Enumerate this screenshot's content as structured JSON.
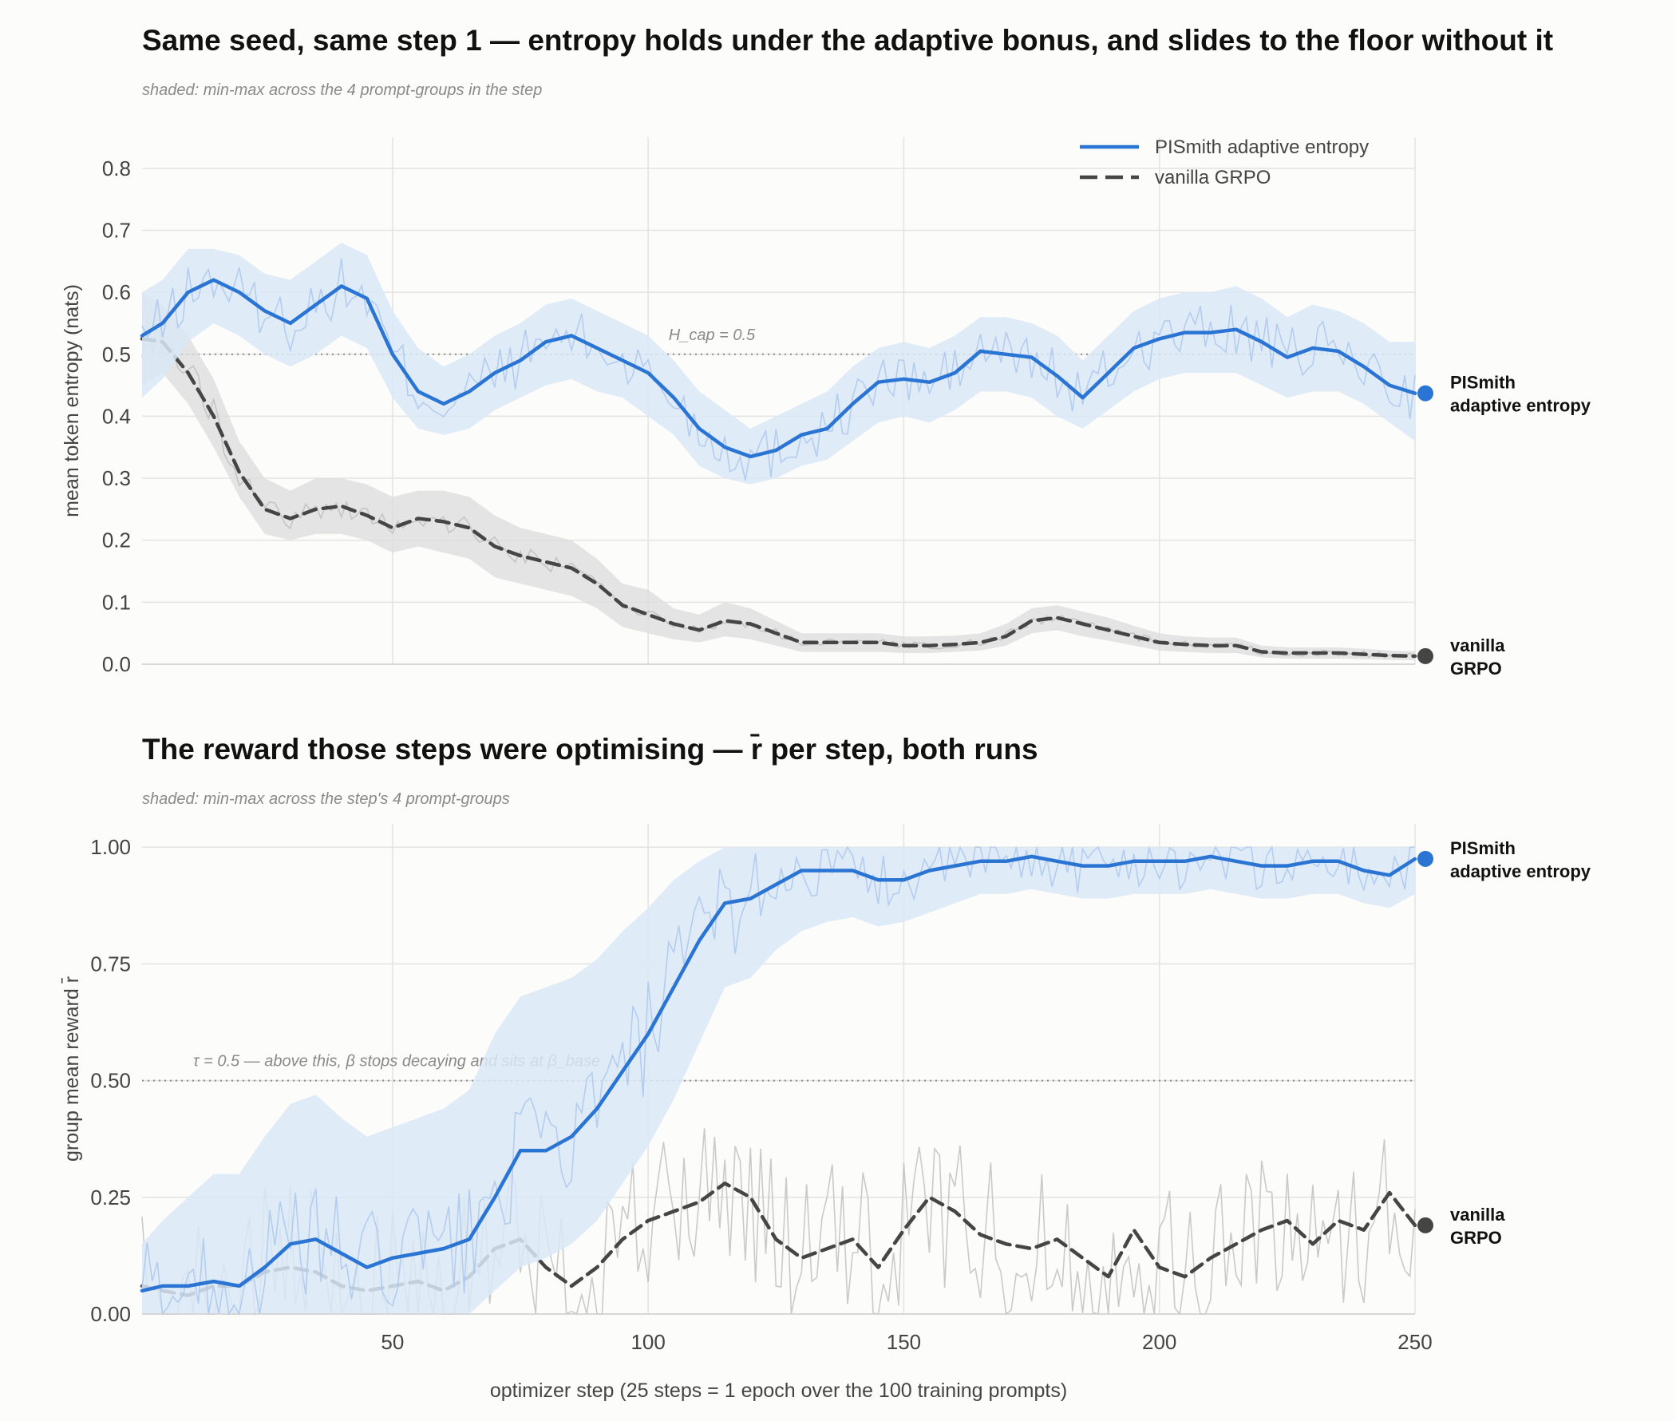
{
  "figure": {
    "top_title": "Same seed, same step 1 — entropy holds under the adaptive bonus, and slides to the floor without it",
    "top_subtitle": "shaded: min-max across the 4 prompt-groups in the step",
    "bottom_title": "The reward those steps were optimising — r̄ per step, both runs",
    "bottom_subtitle": "shaded: min-max across the step's 4 prompt-groups"
  },
  "colors": {
    "pismith": "#2a74d4",
    "vanilla": "#454545",
    "pismith_band": "#dbe7f7",
    "vanilla_band": "#dcdcdc",
    "grid": "#e3e3e3"
  },
  "chart_data": [
    {
      "type": "line",
      "ylabel": "mean token entropy  (nats)",
      "xlim": [
        1,
        250
      ],
      "ylim": [
        0,
        0.85
      ],
      "yticks": [
        "0.0",
        "0.1",
        "0.2",
        "0.3",
        "0.4",
        "0.5",
        "0.6",
        "0.7",
        "0.8"
      ],
      "ytick_values": [
        0,
        0.1,
        0.2,
        0.3,
        0.4,
        0.5,
        0.6,
        0.7,
        0.8
      ],
      "xtick_values": [
        50,
        100,
        150,
        200,
        250
      ],
      "reference_line": {
        "y": 0.5,
        "label": "H_cap = 0.5"
      },
      "legend": {
        "position": "top-right",
        "entries": [
          "PISmith adaptive entropy",
          "vanilla GRPO"
        ]
      },
      "end_labels": {
        "pismith": [
          "PISmith",
          "adaptive entropy"
        ],
        "vanilla": [
          "vanilla",
          "GRPO"
        ]
      },
      "end_values": {
        "pismith": 0.437,
        "vanilla": 0.013
      },
      "series": [
        {
          "key": "pismith",
          "x": [
            1,
            5,
            10,
            15,
            20,
            25,
            30,
            35,
            40,
            45,
            50,
            55,
            60,
            65,
            70,
            75,
            80,
            85,
            90,
            95,
            100,
            105,
            110,
            115,
            120,
            125,
            130,
            135,
            140,
            145,
            150,
            155,
            160,
            165,
            170,
            175,
            180,
            185,
            190,
            195,
            200,
            205,
            210,
            215,
            220,
            225,
            230,
            235,
            240,
            245,
            250
          ],
          "y": [
            0.53,
            0.55,
            0.6,
            0.62,
            0.6,
            0.57,
            0.55,
            0.58,
            0.61,
            0.59,
            0.5,
            0.44,
            0.42,
            0.44,
            0.47,
            0.49,
            0.52,
            0.53,
            0.51,
            0.49,
            0.47,
            0.43,
            0.38,
            0.35,
            0.335,
            0.345,
            0.37,
            0.38,
            0.42,
            0.455,
            0.46,
            0.455,
            0.47,
            0.505,
            0.5,
            0.495,
            0.465,
            0.43,
            0.47,
            0.51,
            0.525,
            0.535,
            0.535,
            0.54,
            0.52,
            0.495,
            0.51,
            0.505,
            0.48,
            0.45,
            0.437
          ],
          "band_lo": [
            0.43,
            0.46,
            0.52,
            0.55,
            0.53,
            0.5,
            0.48,
            0.5,
            0.53,
            0.51,
            0.43,
            0.38,
            0.37,
            0.38,
            0.41,
            0.43,
            0.45,
            0.46,
            0.44,
            0.43,
            0.4,
            0.37,
            0.32,
            0.3,
            0.29,
            0.3,
            0.32,
            0.33,
            0.36,
            0.39,
            0.4,
            0.39,
            0.41,
            0.44,
            0.44,
            0.43,
            0.4,
            0.38,
            0.41,
            0.44,
            0.46,
            0.47,
            0.47,
            0.47,
            0.45,
            0.43,
            0.44,
            0.44,
            0.42,
            0.39,
            0.36
          ],
          "band_hi": [
            0.6,
            0.62,
            0.67,
            0.67,
            0.66,
            0.63,
            0.62,
            0.65,
            0.68,
            0.66,
            0.57,
            0.51,
            0.48,
            0.5,
            0.53,
            0.55,
            0.58,
            0.59,
            0.57,
            0.55,
            0.53,
            0.49,
            0.44,
            0.41,
            0.38,
            0.4,
            0.42,
            0.44,
            0.48,
            0.51,
            0.52,
            0.51,
            0.53,
            0.56,
            0.56,
            0.55,
            0.53,
            0.49,
            0.53,
            0.57,
            0.59,
            0.6,
            0.6,
            0.61,
            0.59,
            0.56,
            0.58,
            0.57,
            0.55,
            0.52,
            0.52
          ]
        },
        {
          "key": "vanilla",
          "x": [
            1,
            5,
            10,
            15,
            20,
            25,
            30,
            35,
            40,
            45,
            50,
            55,
            60,
            65,
            70,
            75,
            80,
            85,
            90,
            95,
            100,
            105,
            110,
            115,
            120,
            125,
            130,
            135,
            140,
            145,
            150,
            155,
            160,
            165,
            170,
            175,
            180,
            185,
            190,
            195,
            200,
            205,
            210,
            215,
            220,
            225,
            230,
            235,
            240,
            245,
            250
          ],
          "y": [
            0.525,
            0.52,
            0.47,
            0.4,
            0.31,
            0.25,
            0.235,
            0.25,
            0.255,
            0.24,
            0.22,
            0.235,
            0.23,
            0.22,
            0.19,
            0.175,
            0.165,
            0.155,
            0.13,
            0.095,
            0.08,
            0.065,
            0.055,
            0.07,
            0.065,
            0.05,
            0.035,
            0.035,
            0.035,
            0.035,
            0.03,
            0.03,
            0.032,
            0.035,
            0.045,
            0.07,
            0.075,
            0.065,
            0.055,
            0.045,
            0.035,
            0.032,
            0.03,
            0.03,
            0.02,
            0.018,
            0.018,
            0.018,
            0.016,
            0.014,
            0.013
          ],
          "band_lo": [
            0.45,
            0.47,
            0.42,
            0.35,
            0.27,
            0.21,
            0.2,
            0.21,
            0.21,
            0.2,
            0.18,
            0.19,
            0.18,
            0.17,
            0.14,
            0.13,
            0.12,
            0.11,
            0.09,
            0.06,
            0.05,
            0.04,
            0.035,
            0.045,
            0.04,
            0.03,
            0.02,
            0.02,
            0.02,
            0.02,
            0.018,
            0.018,
            0.02,
            0.022,
            0.03,
            0.05,
            0.055,
            0.045,
            0.038,
            0.03,
            0.022,
            0.02,
            0.018,
            0.018,
            0.011,
            0.009,
            0.009,
            0.009,
            0.008,
            0.007,
            0.006
          ],
          "band_hi": [
            0.6,
            0.58,
            0.53,
            0.46,
            0.36,
            0.3,
            0.28,
            0.3,
            0.3,
            0.29,
            0.27,
            0.28,
            0.28,
            0.27,
            0.24,
            0.22,
            0.21,
            0.2,
            0.17,
            0.13,
            0.12,
            0.09,
            0.08,
            0.1,
            0.09,
            0.07,
            0.05,
            0.05,
            0.05,
            0.05,
            0.045,
            0.045,
            0.046,
            0.05,
            0.065,
            0.09,
            0.095,
            0.085,
            0.075,
            0.062,
            0.05,
            0.045,
            0.043,
            0.043,
            0.03,
            0.027,
            0.027,
            0.027,
            0.025,
            0.022,
            0.021
          ]
        }
      ]
    },
    {
      "type": "line",
      "ylabel": "group mean reward  r̄",
      "xlabel": "optimizer step   (25 steps = 1 epoch over the 100 training prompts)",
      "xlim": [
        1,
        250
      ],
      "ylim": [
        0,
        1.05
      ],
      "yticks": [
        "0.00",
        "0.25",
        "0.50",
        "0.75",
        "1.00"
      ],
      "ytick_values": [
        0,
        0.25,
        0.5,
        0.75,
        1.0
      ],
      "xticks": [
        "50",
        "100",
        "150",
        "200",
        "250"
      ],
      "xtick_values": [
        50,
        100,
        150,
        200,
        250
      ],
      "reference_line": {
        "y": 0.5,
        "label": "τ = 0.5 — above this, β stops decaying and sits at β_base"
      },
      "end_labels": {
        "pismith": [
          "PISmith",
          "adaptive entropy"
        ],
        "vanilla": [
          "vanilla",
          "GRPO"
        ]
      },
      "end_values": {
        "pismith": 0.975,
        "vanilla": 0.19
      },
      "series": [
        {
          "key": "pismith",
          "x": [
            1,
            5,
            10,
            15,
            20,
            25,
            30,
            35,
            40,
            45,
            50,
            55,
            60,
            65,
            70,
            75,
            80,
            85,
            90,
            95,
            100,
            105,
            110,
            115,
            120,
            125,
            130,
            135,
            140,
            145,
            150,
            155,
            160,
            165,
            170,
            175,
            180,
            185,
            190,
            195,
            200,
            205,
            210,
            215,
            220,
            225,
            230,
            235,
            240,
            245,
            250
          ],
          "y": [
            0.05,
            0.06,
            0.06,
            0.07,
            0.06,
            0.1,
            0.15,
            0.16,
            0.13,
            0.1,
            0.12,
            0.13,
            0.14,
            0.16,
            0.25,
            0.35,
            0.35,
            0.38,
            0.44,
            0.52,
            0.6,
            0.7,
            0.8,
            0.88,
            0.89,
            0.92,
            0.95,
            0.95,
            0.95,
            0.93,
            0.93,
            0.95,
            0.96,
            0.97,
            0.97,
            0.98,
            0.97,
            0.96,
            0.96,
            0.97,
            0.97,
            0.97,
            0.98,
            0.97,
            0.96,
            0.96,
            0.97,
            0.97,
            0.95,
            0.94,
            0.975
          ],
          "band_lo": [
            0.0,
            0.0,
            0.0,
            0.0,
            0.0,
            0.0,
            0.0,
            0.0,
            0.0,
            0.0,
            0.0,
            0.0,
            0.0,
            0.0,
            0.05,
            0.1,
            0.12,
            0.15,
            0.2,
            0.28,
            0.36,
            0.46,
            0.58,
            0.7,
            0.72,
            0.78,
            0.82,
            0.84,
            0.85,
            0.83,
            0.84,
            0.86,
            0.88,
            0.9,
            0.9,
            0.91,
            0.9,
            0.89,
            0.89,
            0.9,
            0.9,
            0.9,
            0.91,
            0.9,
            0.89,
            0.89,
            0.9,
            0.9,
            0.88,
            0.87,
            0.9
          ],
          "band_hi": [
            0.15,
            0.2,
            0.25,
            0.3,
            0.3,
            0.38,
            0.45,
            0.47,
            0.42,
            0.38,
            0.4,
            0.42,
            0.44,
            0.48,
            0.6,
            0.68,
            0.7,
            0.72,
            0.76,
            0.82,
            0.87,
            0.93,
            0.97,
            1.0,
            1.0,
            1.0,
            1.0,
            1.0,
            1.0,
            1.0,
            1.0,
            1.0,
            1.0,
            1.0,
            1.0,
            1.0,
            1.0,
            1.0,
            1.0,
            1.0,
            1.0,
            1.0,
            1.0,
            1.0,
            1.0,
            1.0,
            1.0,
            1.0,
            1.0,
            1.0,
            1.0
          ]
        },
        {
          "key": "vanilla",
          "x": [
            1,
            5,
            10,
            15,
            20,
            25,
            30,
            35,
            40,
            45,
            50,
            55,
            60,
            65,
            70,
            75,
            80,
            85,
            90,
            95,
            100,
            105,
            110,
            115,
            120,
            125,
            130,
            135,
            140,
            145,
            150,
            155,
            160,
            165,
            170,
            175,
            180,
            185,
            190,
            195,
            200,
            205,
            210,
            215,
            220,
            225,
            230,
            235,
            240,
            245,
            250
          ],
          "y": [
            0.06,
            0.05,
            0.04,
            0.06,
            0.06,
            0.09,
            0.1,
            0.09,
            0.06,
            0.05,
            0.06,
            0.07,
            0.05,
            0.08,
            0.14,
            0.16,
            0.1,
            0.06,
            0.1,
            0.16,
            0.2,
            0.22,
            0.24,
            0.28,
            0.25,
            0.16,
            0.12,
            0.14,
            0.16,
            0.1,
            0.18,
            0.25,
            0.22,
            0.17,
            0.15,
            0.14,
            0.16,
            0.12,
            0.08,
            0.18,
            0.1,
            0.08,
            0.12,
            0.15,
            0.18,
            0.2,
            0.15,
            0.2,
            0.18,
            0.26,
            0.19
          ]
        }
      ]
    }
  ]
}
